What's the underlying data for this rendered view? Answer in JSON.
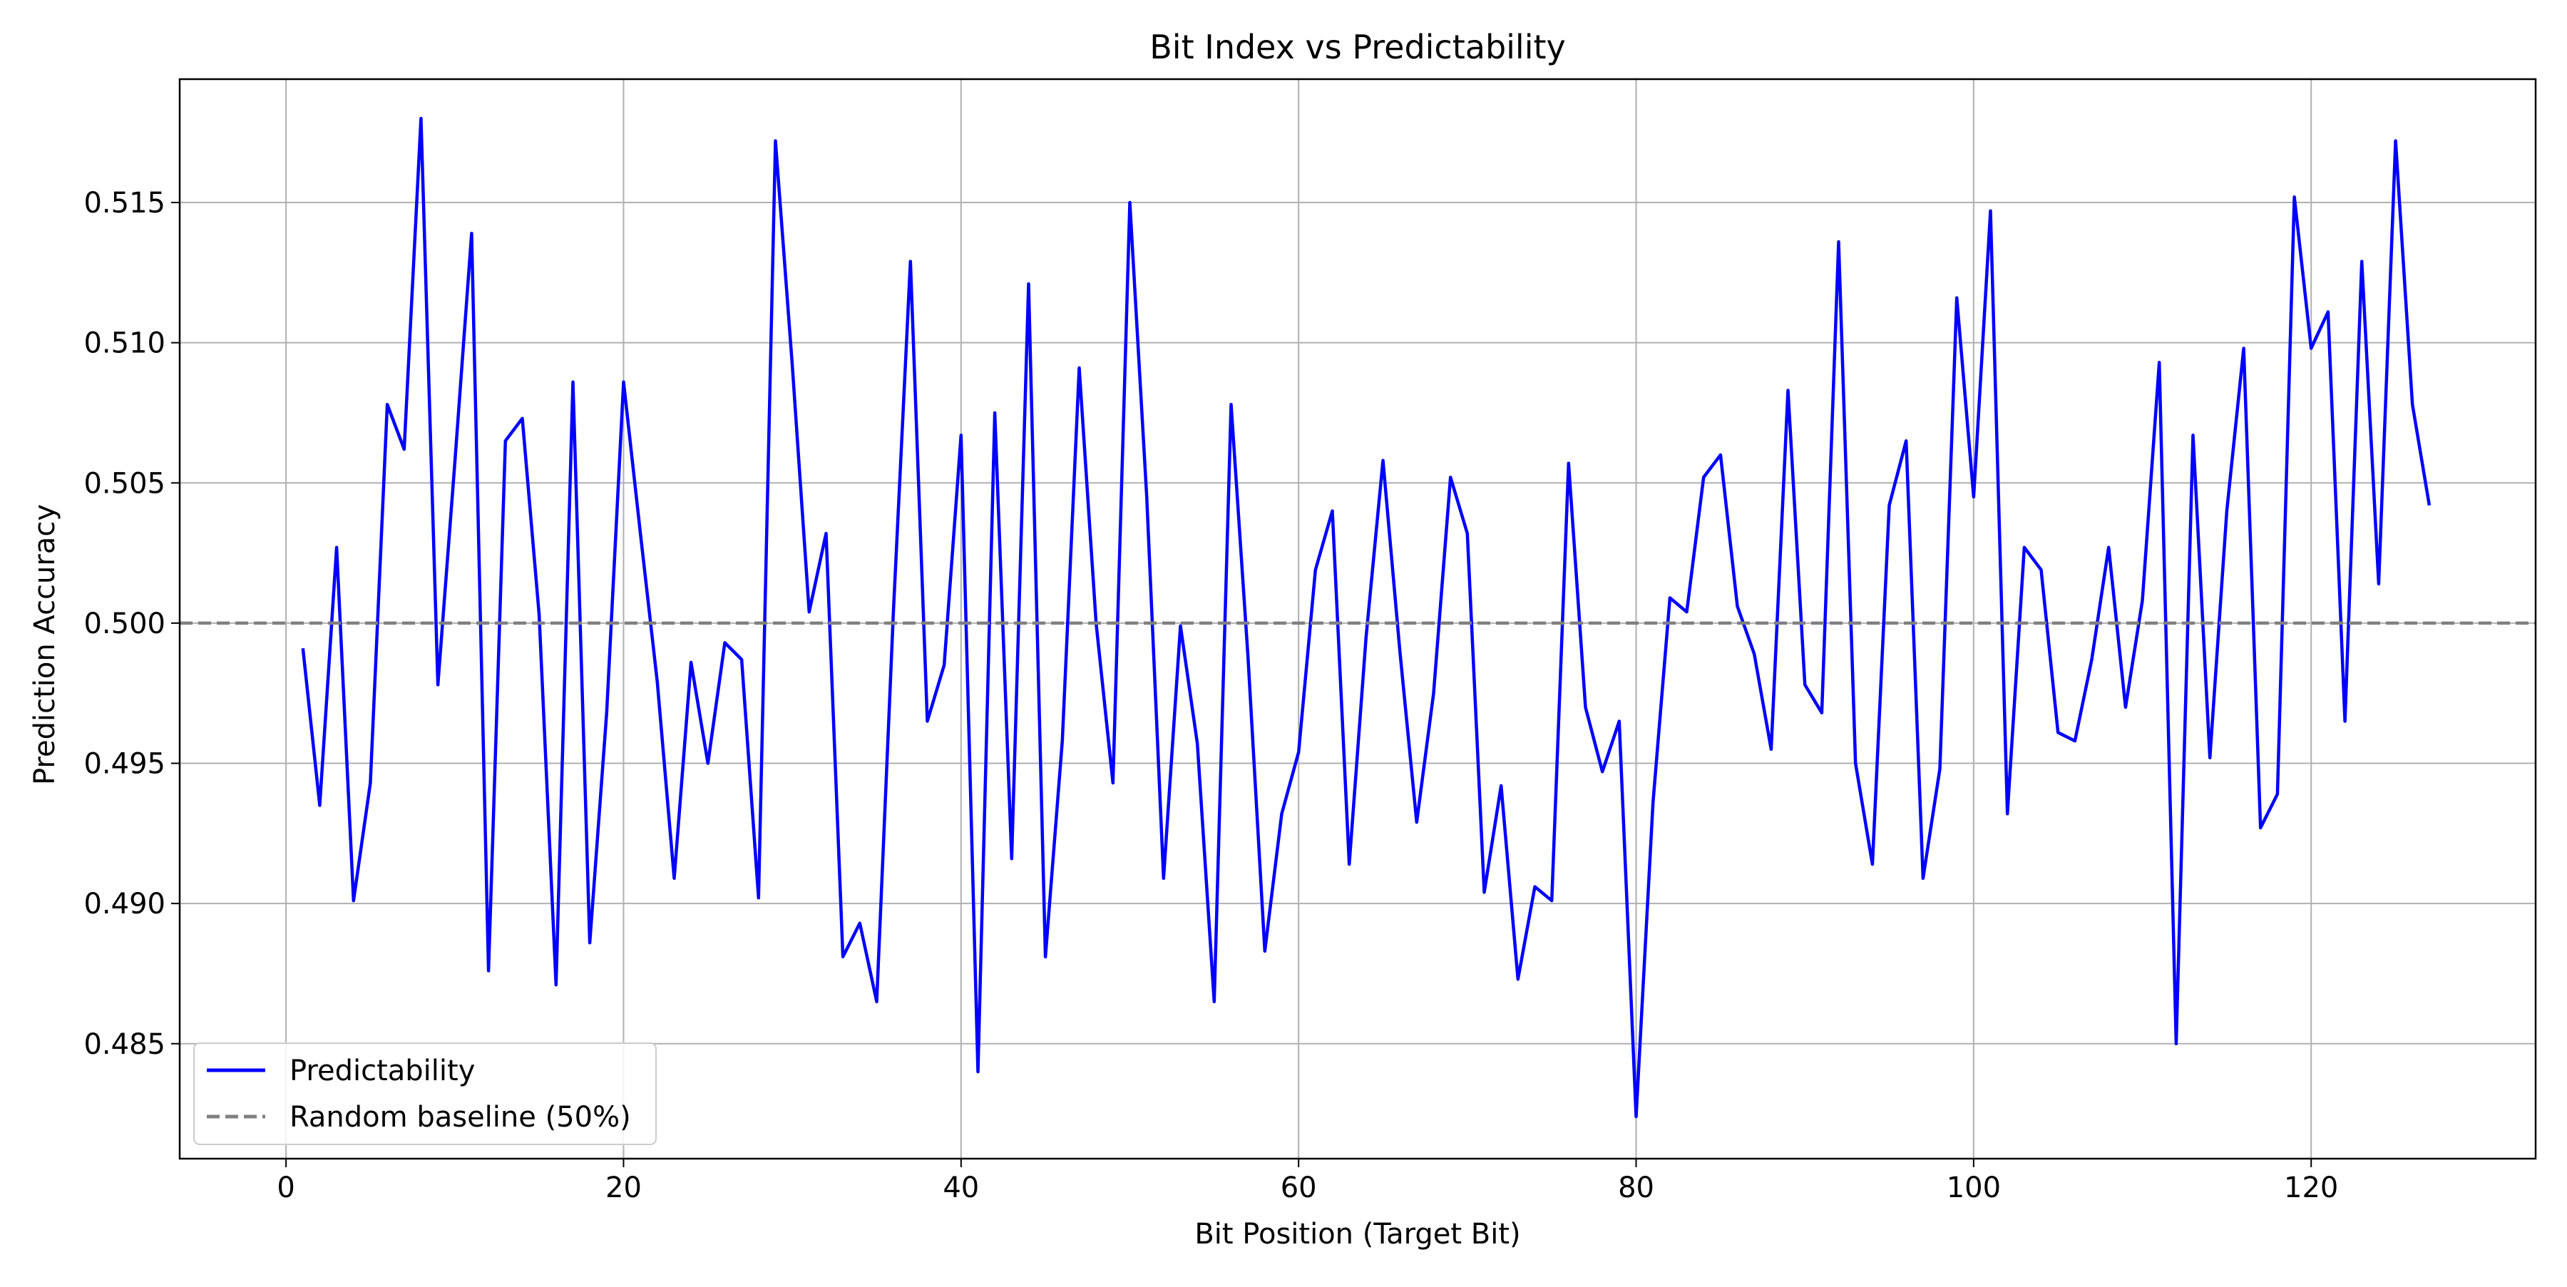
{
  "chart_data": {
    "type": "line",
    "title": "Bit Index vs Predictability",
    "xlabel": "Bit Position (Target Bit)",
    "ylabel": "Prediction Accuracy",
    "xlim": [
      -6.3,
      133.3
    ],
    "ylim": [
      0.4809,
      0.5194
    ],
    "xticks": [
      0,
      20,
      40,
      60,
      80,
      100,
      120
    ],
    "yticks": [
      0.485,
      0.49,
      0.495,
      0.5,
      0.505,
      0.51,
      0.515
    ],
    "xtick_labels": [
      "0",
      "20",
      "40",
      "60",
      "80",
      "100",
      "120"
    ],
    "ytick_labels": [
      "0.485",
      "0.490",
      "0.495",
      "0.500",
      "0.505",
      "0.510",
      "0.515"
    ],
    "grid": true,
    "legend_position": "lower-left",
    "series": [
      {
        "name": "Predictability",
        "color": "#0000ff",
        "style": "solid",
        "x": [
          1,
          2,
          3,
          4,
          5,
          6,
          7,
          8,
          9,
          10,
          11,
          12,
          13,
          14,
          15,
          16,
          17,
          18,
          19,
          20,
          21,
          22,
          23,
          24,
          25,
          26,
          27,
          28,
          29,
          30,
          31,
          32,
          33,
          34,
          35,
          36,
          37,
          38,
          39,
          40,
          41,
          42,
          43,
          44,
          45,
          46,
          47,
          48,
          49,
          50,
          51,
          52,
          53,
          54,
          55,
          56,
          57,
          58,
          59,
          60,
          61,
          62,
          63,
          64,
          65,
          66,
          67,
          68,
          69,
          70,
          71,
          72,
          73,
          74,
          75,
          76,
          77,
          78,
          79,
          80,
          81,
          82,
          83,
          84,
          85,
          86,
          87,
          88,
          89,
          90,
          91,
          92,
          93,
          94,
          95,
          96,
          97,
          98,
          99,
          100,
          101,
          102,
          103,
          104,
          105,
          106,
          107,
          108,
          109,
          110,
          111,
          112,
          113,
          114,
          115,
          116,
          117,
          118,
          119,
          120,
          121,
          122,
          123,
          124,
          125,
          126,
          127
        ],
        "y": [
          0.4991,
          0.4935,
          0.5027,
          0.4901,
          0.4943,
          0.5078,
          0.5062,
          0.518,
          0.4978,
          0.5057,
          0.5139,
          0.4876,
          0.5065,
          0.5073,
          0.5003,
          0.4871,
          0.5086,
          0.4886,
          0.4968,
          0.5086,
          0.5032,
          0.4979,
          0.4909,
          0.4986,
          0.495,
          0.4993,
          0.4987,
          0.4902,
          0.5172,
          0.5092,
          0.5004,
          0.5032,
          0.4881,
          0.4893,
          0.4865,
          0.5005,
          0.5129,
          0.4965,
          0.4985,
          0.5067,
          0.484,
          0.5075,
          0.4916,
          0.5121,
          0.4881,
          0.4958,
          0.5091,
          0.5,
          0.4943,
          0.515,
          0.5045,
          0.4909,
          0.4999,
          0.4957,
          0.4865,
          0.5078,
          0.4988,
          0.4883,
          0.4932,
          0.4954,
          0.5019,
          0.504,
          0.4914,
          0.4995,
          0.5058,
          0.499,
          0.4929,
          0.4975,
          0.5052,
          0.5032,
          0.4904,
          0.4942,
          0.4873,
          0.4906,
          0.4901,
          0.5057,
          0.497,
          0.4947,
          0.4965,
          0.4824,
          0.4936,
          0.5009,
          0.5004,
          0.5052,
          0.506,
          0.5006,
          0.4989,
          0.4955,
          0.5083,
          0.4978,
          0.4968,
          0.5136,
          0.495,
          0.4914,
          0.5042,
          0.5065,
          0.4909,
          0.4948,
          0.5116,
          0.5045,
          0.5147,
          0.4932,
          0.5027,
          0.5019,
          0.4961,
          0.4958,
          0.4987,
          0.5027,
          0.497,
          0.5008,
          0.5093,
          0.485,
          0.5067,
          0.4952,
          0.504,
          0.5098,
          0.4927,
          0.4939,
          0.5152,
          0.5098,
          0.5111,
          0.4965,
          0.5129,
          0.5014,
          0.5172,
          0.5078,
          0.5042
        ]
      },
      {
        "name": "Random baseline (50%)",
        "color": "#808080",
        "style": "dashed",
        "y_constant": 0.5
      }
    ]
  }
}
